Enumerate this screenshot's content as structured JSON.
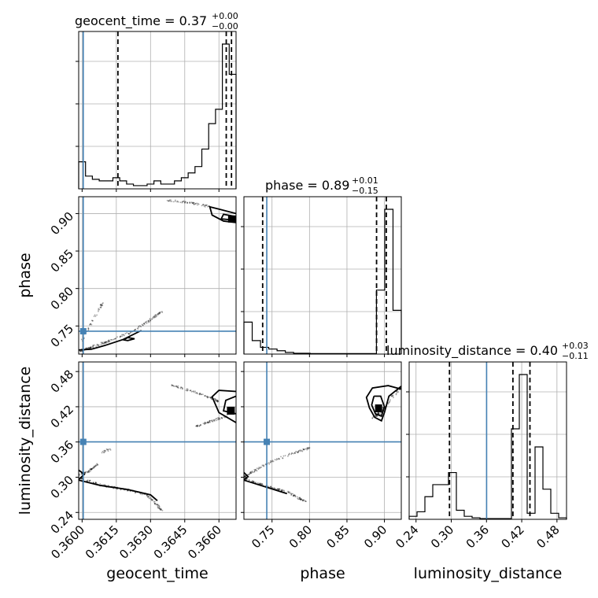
{
  "chart_data": {
    "type": "corner",
    "truth_color": "#4682b4",
    "parameters": [
      {
        "name": "geocent_time",
        "xlabel": "geocent_time",
        "ticks": [
          0.36,
          0.3615,
          0.363,
          0.3645,
          0.366
        ],
        "tick_labels": [
          "0.3600",
          "0.3615",
          "0.3630",
          "0.3645",
          "0.3660"
        ],
        "range": [
          0.35985,
          0.36675
        ],
        "truth": 0.36005,
        "quantiles": [
          0.36157,
          0.36632,
          0.36655
        ],
        "title": {
          "main": "geocent_time = 0.37",
          "sup": "+0.00",
          "sub": "−0.00"
        },
        "hist": [
          0.17,
          0.08,
          0.06,
          0.05,
          0.05,
          0.07,
          0.05,
          0.03,
          0.02,
          0.02,
          0.03,
          0.05,
          0.03,
          0.03,
          0.05,
          0.07,
          0.1,
          0.14,
          0.25,
          0.41,
          0.5,
          0.91,
          0.72
        ]
      },
      {
        "name": "phase",
        "ylabel": "phase",
        "xlabel": "phase",
        "ticks": [
          0.75,
          0.8,
          0.85,
          0.9
        ],
        "tick_labels": [
          "0.75",
          "0.80",
          "0.85",
          "0.90"
        ],
        "range": [
          0.7125,
          0.9225
        ],
        "truth": 0.743,
        "quantiles": [
          0.7375,
          0.8895,
          0.9025
        ],
        "title": {
          "main": "phase = 0.89",
          "sup": "+0.01",
          "sub": "−0.15"
        },
        "hist": [
          0.19,
          0.08,
          0.04,
          0.03,
          0.02,
          0.01,
          0.005,
          0.005,
          0.003,
          0.003,
          0.003,
          0.003,
          0.003,
          0.003,
          0.003,
          0.003,
          0.38,
          0.86,
          0.26
        ]
      },
      {
        "name": "luminosity_distance",
        "ylabel": "luminosity_distance",
        "xlabel": "luminosity_distance",
        "ticks": [
          0.24,
          0.3,
          0.36,
          0.42,
          0.48
        ],
        "tick_labels": [
          "0.24",
          "0.30",
          "0.36",
          "0.42",
          "0.48"
        ],
        "range": [
          0.2283,
          0.4963
        ],
        "truth": 0.3602,
        "quantiles": [
          0.297,
          0.405,
          0.434
        ],
        "title": {
          "main": "luminosity_distance = 0.40",
          "sup": "+0.03",
          "sub": "−0.11"
        },
        "hist": [
          0.02,
          0.05,
          0.15,
          0.23,
          0.23,
          0.31,
          0.06,
          0.02,
          0.01,
          0.005,
          0.005,
          0.005,
          0.005,
          0.6,
          0.96,
          0.04,
          0.48,
          0.2,
          0.04,
          0.01
        ]
      }
    ]
  }
}
